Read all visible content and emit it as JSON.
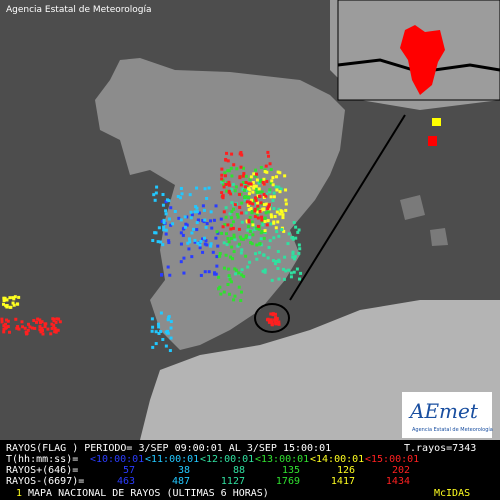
{
  "header": {
    "agency": "Agencia Estatal de Meteorología"
  },
  "logo": {
    "brand": "AEmet",
    "subtitle": "Agencia Estatal de Meteorología"
  },
  "stats": {
    "period": "RAYOS(FLAG ) PERIODO= 3/SEP 09:00:01 AL 3/SEP 15:00:01",
    "total": "T.rayos=7343",
    "time_label": "T(hh:mm:ss)=",
    "intervals": [
      "<10:00:01",
      "<11:00:01",
      "<12:00:01",
      "<13:00:01",
      "<14:00:01",
      "<15:00:01"
    ],
    "colors": [
      "#2a3cff",
      "#22c8ff",
      "#30e0a0",
      "#30e030",
      "#ffff20",
      "#ff2020"
    ],
    "positive_label": "RAYOS+(646)=",
    "positive": [
      57,
      38,
      88,
      135,
      126,
      202
    ],
    "negative_label": "RAYOS-(6697)=",
    "negative": [
      463,
      487,
      1127,
      1769,
      1417,
      1434
    ]
  },
  "footer": {
    "page": "1",
    "title": "MAPA NACIONAL DE RAYOS (ULTIMAS 6 HORAS)",
    "system": "McIDAS"
  }
}
